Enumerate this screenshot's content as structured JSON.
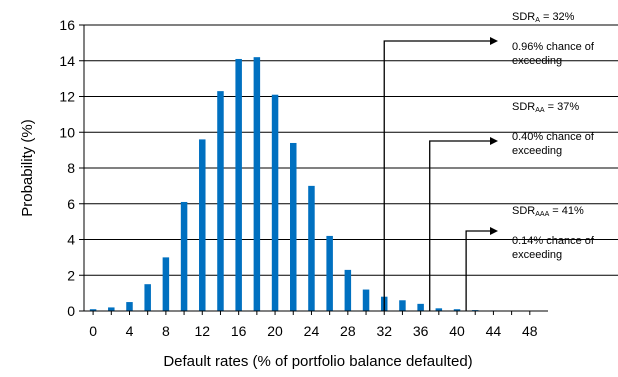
{
  "chart_data": {
    "type": "bar",
    "xlabel": "Default rates (% of portfolio balance defaulted)",
    "ylabel": "Probability (%)",
    "ylim": [
      0,
      16
    ],
    "yticks": [
      0,
      2,
      4,
      6,
      8,
      10,
      12,
      14,
      16
    ],
    "xlim": [
      -1,
      50
    ],
    "xticks": [
      0,
      4,
      8,
      12,
      16,
      20,
      24,
      28,
      32,
      36,
      40,
      44,
      48
    ],
    "grid": "horizontal",
    "color": "#0070c0",
    "x": [
      0,
      2,
      4,
      6,
      8,
      10,
      12,
      14,
      16,
      18,
      20,
      22,
      24,
      26,
      28,
      30,
      32,
      34,
      36,
      38,
      40,
      42,
      44,
      46,
      48
    ],
    "values": [
      0.1,
      0.2,
      0.5,
      1.5,
      3.0,
      6.1,
      9.6,
      12.3,
      14.1,
      14.2,
      12.1,
      9.4,
      7.0,
      4.2,
      2.3,
      1.2,
      0.8,
      0.6,
      0.4,
      0.15,
      0.1,
      0.05,
      0.03,
      0.02,
      0.02
    ],
    "annotations": [
      {
        "name": "sdr-a",
        "label_main": "SDR",
        "label_sub": "A",
        "label_value": " = 32%",
        "text_line1": "0.96% chance of",
        "text_line2": "exceeding",
        "x": 32
      },
      {
        "name": "sdr-aa",
        "label_main": "SDR",
        "label_sub": "AA",
        "label_value": " = 37%",
        "text_line1": "0.40% chance of",
        "text_line2": "exceeding",
        "x": 37
      },
      {
        "name": "sdr-aaa",
        "label_main": "SDR",
        "label_sub": "AAA",
        "label_value": " = 41%",
        "text_line1": "0.14% chance of",
        "text_line2": "exceeding",
        "x": 41
      }
    ]
  }
}
